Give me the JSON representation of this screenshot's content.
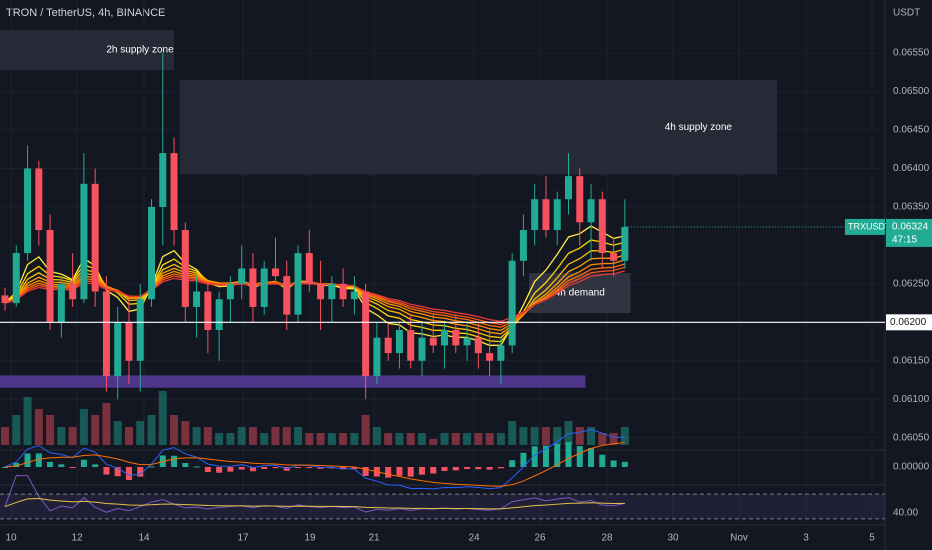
{
  "chart_data": {
    "type": "candlestick",
    "title": "TRON / TetherUS, 4h, BINANCE",
    "currency": "USDT",
    "ylim": [
      0.06034,
      0.06619
    ],
    "yticks": [
      {
        "value": 0.0655,
        "label": "0.06550"
      },
      {
        "value": 0.065,
        "label": "0.06500"
      },
      {
        "value": 0.0645,
        "label": "0.06450"
      },
      {
        "value": 0.064,
        "label": "0.06400"
      },
      {
        "value": 0.0635,
        "label": "0.06350"
      },
      {
        "value": 0.0625,
        "label": "0.06250"
      },
      {
        "value": 0.0615,
        "label": "0.06150"
      },
      {
        "value": 0.061,
        "label": "0.06100"
      },
      {
        "value": 0.0605,
        "label": "0.06050"
      }
    ],
    "xtick_labels": [
      "10",
      "12",
      "14",
      "17",
      "19",
      "21",
      "24",
      "26",
      "28",
      "30",
      "Nov",
      "3",
      "5"
    ],
    "up_color": "#22ab94",
    "down_color": "#f7525f",
    "open": [
      0.06235,
      0.06225,
      0.0629,
      0.064,
      0.0632,
      0.062,
      0.0625,
      0.0623,
      0.0638,
      0.0624,
      0.0613,
      0.062,
      0.0615,
      0.0623,
      0.0635,
      0.0642,
      0.0632,
      0.0622,
      0.0624,
      0.0619,
      0.0623,
      0.0625,
      0.0627,
      0.0622,
      0.0627,
      0.0626,
      0.0621,
      0.0629,
      0.0625,
      0.0623,
      0.0625,
      0.0623,
      0.0624,
      0.0613,
      0.0618,
      0.0616,
      0.0619,
      0.0615,
      0.0618,
      0.0617,
      0.0619,
      0.0617,
      0.0618,
      0.0616,
      0.0615,
      0.0617,
      0.0628,
      0.0632,
      0.0636,
      0.0632,
      0.0636,
      0.0639,
      0.0633,
      0.0636,
      0.0629,
      0.0628
    ],
    "high": [
      0.06245,
      0.063,
      0.0643,
      0.0641,
      0.0634,
      0.0626,
      0.0629,
      0.0642,
      0.064,
      0.0626,
      0.0622,
      0.0623,
      0.0625,
      0.0636,
      0.0655,
      0.0644,
      0.0633,
      0.0626,
      0.0625,
      0.0624,
      0.0626,
      0.063,
      0.0629,
      0.0628,
      0.0631,
      0.0628,
      0.063,
      0.0632,
      0.0628,
      0.0626,
      0.0627,
      0.0626,
      0.0625,
      0.062,
      0.062,
      0.062,
      0.0621,
      0.062,
      0.0621,
      0.062,
      0.0621,
      0.062,
      0.062,
      0.0619,
      0.0618,
      0.0629,
      0.0634,
      0.0638,
      0.0639,
      0.0637,
      0.0642,
      0.064,
      0.0638,
      0.0637,
      0.0631,
      0.0636
    ],
    "low": [
      0.06215,
      0.0622,
      0.0628,
      0.063,
      0.0619,
      0.0618,
      0.0622,
      0.06225,
      0.0622,
      0.0611,
      0.061,
      0.0612,
      0.0611,
      0.0622,
      0.063,
      0.063,
      0.062,
      0.0618,
      0.0616,
      0.0615,
      0.062,
      0.0623,
      0.062,
      0.0621,
      0.0625,
      0.0619,
      0.062,
      0.0624,
      0.0619,
      0.062,
      0.0622,
      0.0621,
      0.061,
      0.0612,
      0.0615,
      0.0614,
      0.0614,
      0.0613,
      0.0616,
      0.0614,
      0.0616,
      0.0615,
      0.0614,
      0.0613,
      0.0612,
      0.0616,
      0.0626,
      0.063,
      0.0631,
      0.063,
      0.0634,
      0.063,
      0.0628,
      0.0627,
      0.0626,
      0.0627
    ],
    "close": [
      0.06225,
      0.0629,
      0.064,
      0.0632,
      0.062,
      0.0625,
      0.0623,
      0.0638,
      0.0624,
      0.0613,
      0.062,
      0.0615,
      0.0623,
      0.0635,
      0.0642,
      0.0632,
      0.0622,
      0.0624,
      0.0619,
      0.0623,
      0.0625,
      0.0627,
      0.0622,
      0.0627,
      0.0626,
      0.0621,
      0.0629,
      0.0625,
      0.0623,
      0.0625,
      0.0623,
      0.0624,
      0.0613,
      0.0618,
      0.0616,
      0.0619,
      0.0615,
      0.0618,
      0.0617,
      0.0619,
      0.0617,
      0.0618,
      0.0616,
      0.0615,
      0.0617,
      0.0628,
      0.0632,
      0.0636,
      0.0632,
      0.0636,
      0.0639,
      0.0633,
      0.0636,
      0.0629,
      0.0628,
      0.06324
    ],
    "volume": [
      3,
      5,
      8,
      6,
      5,
      3,
      3,
      6,
      5,
      7,
      4,
      3,
      4,
      5,
      9,
      5,
      4,
      3,
      3,
      2,
      2,
      3,
      3,
      2,
      3,
      3,
      3,
      2,
      2,
      2,
      2,
      2,
      5,
      3,
      2,
      2,
      2,
      2,
      1,
      2,
      2,
      2,
      2,
      2,
      2,
      4,
      3,
      3,
      3,
      3,
      4,
      3,
      3,
      2,
      2,
      3
    ],
    "volume_ylim": [
      0,
      10
    ],
    "zones": [
      {
        "label": "2h supply zone",
        "top": 0.0658,
        "bottom": 0.06528,
        "from": -1,
        "to": 15,
        "color": "#2a2e39"
      },
      {
        "label": "4h supply zone",
        "top": 0.06515,
        "bottom": 0.06392,
        "from": 15.5,
        "to": 68.5,
        "color": "#2a2e39"
      },
      {
        "label": "4h demand",
        "top": 0.06264,
        "bottom": 0.06212,
        "from": 46.5,
        "to": 55.5,
        "color": "#363a45"
      },
      {
        "label": null,
        "top": 0.06131,
        "bottom": 0.06115,
        "from": -1,
        "to": 51.5,
        "color": "#5b3c9e"
      }
    ],
    "horizontal_line": {
      "value": 0.062,
      "label": "0.06200"
    },
    "last_price": {
      "symbol": "TRXUSDT",
      "value": 0.06324,
      "label": "0.06324",
      "countdown": "47:15"
    },
    "macd_ylim": [
      -0.00015,
      0.00015
    ],
    "macd_yticks": [
      {
        "value": 0,
        "label": "0.00000"
      }
    ],
    "rsi_ylim": [
      25,
      80
    ],
    "rsi_yticks": [
      {
        "value": 40,
        "label": "40.00"
      }
    ],
    "rsi_band": [
      30,
      70
    ]
  }
}
